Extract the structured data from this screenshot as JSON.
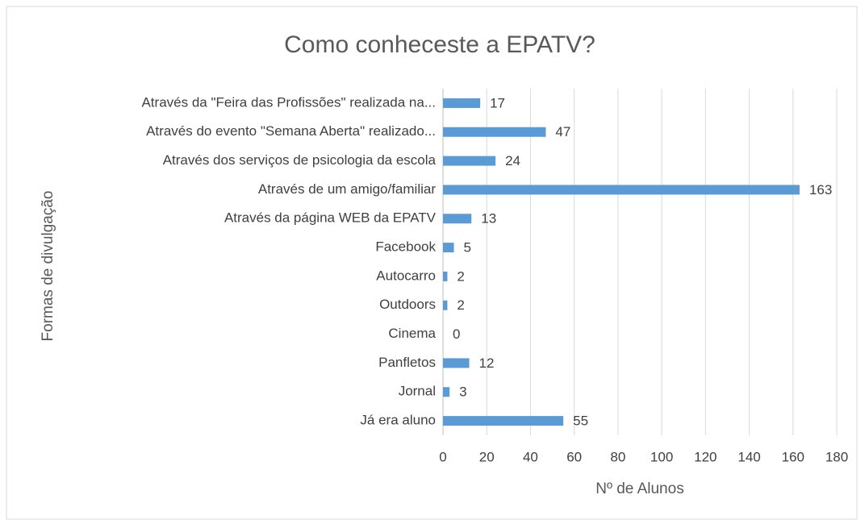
{
  "chart_data": {
    "type": "bar",
    "orientation": "horizontal",
    "title": "Como conheceste a EPATV?",
    "x_label": "Nº de Alunos",
    "y_label": "Formas de divulgação",
    "categories": [
      "Através da \"Feira das Profissões\" realizada na...",
      "Através do evento \"Semana Aberta\" realizado...",
      "Através dos serviços de psicologia da escola",
      "Através de um amigo/familiar",
      "Através da página WEB da EPATV",
      "Facebook",
      "Autocarro",
      "Outdoors",
      "Cinema",
      "Panfletos",
      "Jornal",
      "Já era aluno"
    ],
    "values": [
      17,
      47,
      24,
      163,
      13,
      5,
      2,
      2,
      0,
      12,
      3,
      55
    ],
    "color": "#5b9bd5",
    "xlim": [
      0,
      180
    ],
    "xticks": [
      0,
      20,
      40,
      60,
      80,
      100,
      120,
      140,
      160,
      180
    ],
    "grid": true
  }
}
